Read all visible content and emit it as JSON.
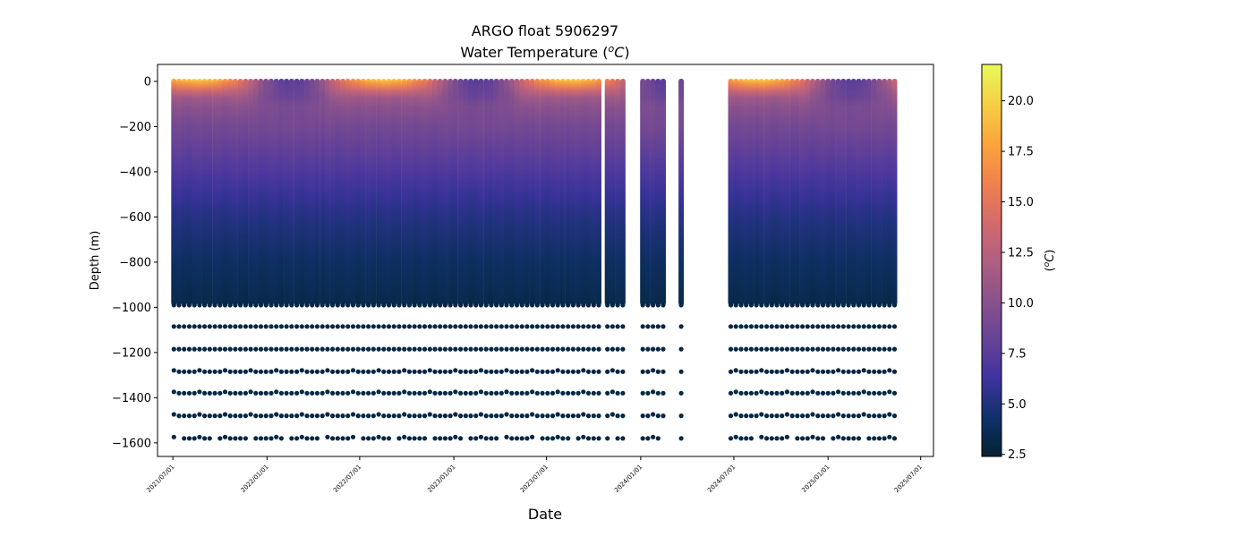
{
  "chart_data": {
    "type": "scatter",
    "title_line1": "ARGO float 5906297",
    "title_line2": "Water Temperature (",
    "title_unit_sup": "o",
    "title_unit": "C",
    "title_close": ")",
    "xlabel": "Date",
    "ylabel": "Depth (m)",
    "colorbar_label_open": "(",
    "colorbar_label_sup": "o",
    "colorbar_label_unit": "C",
    "colorbar_label_close": ")",
    "xlim": [
      "2021-06-01",
      "2025-07-26"
    ],
    "ylim": [
      -1660,
      75
    ],
    "clim": [
      2.4,
      21.8
    ],
    "x_ticks": [
      "2021/07/01",
      "2022/01/01",
      "2022/07/01",
      "2023/01/01",
      "2023/07/01",
      "2024/01/01",
      "2024/07/01",
      "2025/01/01",
      "2025/07/01"
    ],
    "x_tick_dates": [
      "2021-07-01",
      "2022-01-01",
      "2022-07-01",
      "2023-01-01",
      "2023-07-01",
      "2024-01-01",
      "2024-07-01",
      "2025-01-01",
      "2025-07-01"
    ],
    "y_ticks": [
      0,
      -200,
      -400,
      -600,
      -800,
      -1000,
      -1200,
      -1400,
      -1600
    ],
    "y_tick_labels": [
      "0",
      "−200",
      "−400",
      "−600",
      "−800",
      "−1000",
      "−1200",
      "−1400",
      "−1600"
    ],
    "colorbar_ticks": [
      2.5,
      5.0,
      7.5,
      10.0,
      12.5,
      15.0,
      17.5,
      20.0
    ],
    "colorbar_tick_labels": [
      "2.5",
      "5.0",
      "7.5",
      "10.0",
      "12.5",
      "15.0",
      "17.5",
      "20.0"
    ],
    "colormap": [
      "#042333",
      "#0f3169",
      "#3f339f",
      "#674396",
      "#8a528c",
      "#b05f81",
      "#d56b6c",
      "#f2824c",
      "#fba53c",
      "#f6d045",
      "#e8fa5b"
    ],
    "profile_segments": [
      {
        "start": "2021-07-03",
        "end": "2023-10-15",
        "interval_days": 10
      },
      {
        "start": "2023-10-28",
        "end": "2023-11-30",
        "interval_days": 10
      },
      {
        "start": "2024-01-05",
        "end": "2024-02-20",
        "interval_days": 10
      },
      {
        "start": "2024-03-20",
        "end": "2024-03-20",
        "interval_days": 10
      },
      {
        "start": "2024-06-25",
        "end": "2025-05-15",
        "interval_days": 10
      }
    ],
    "continuous_profile_depth_range": [
      0,
      -980
    ],
    "deep_sample_depths": [
      -990,
      -1085,
      -1185,
      -1285,
      -1380,
      -1480,
      -1580
    ],
    "mean_profile": {
      "depth": [
        0,
        -50,
        -100,
        -200,
        -300,
        -400,
        -500,
        -600,
        -800,
        -1000
      ],
      "temperature": [
        14.5,
        12.5,
        10.5,
        9.0,
        8.0,
        7.0,
        6.0,
        5.2,
        4.0,
        3.2
      ]
    },
    "surface_seasonal_amplitude": 5.5,
    "surface_peak_day_of_year": 230,
    "deep_point_temperature": 3.0
  }
}
